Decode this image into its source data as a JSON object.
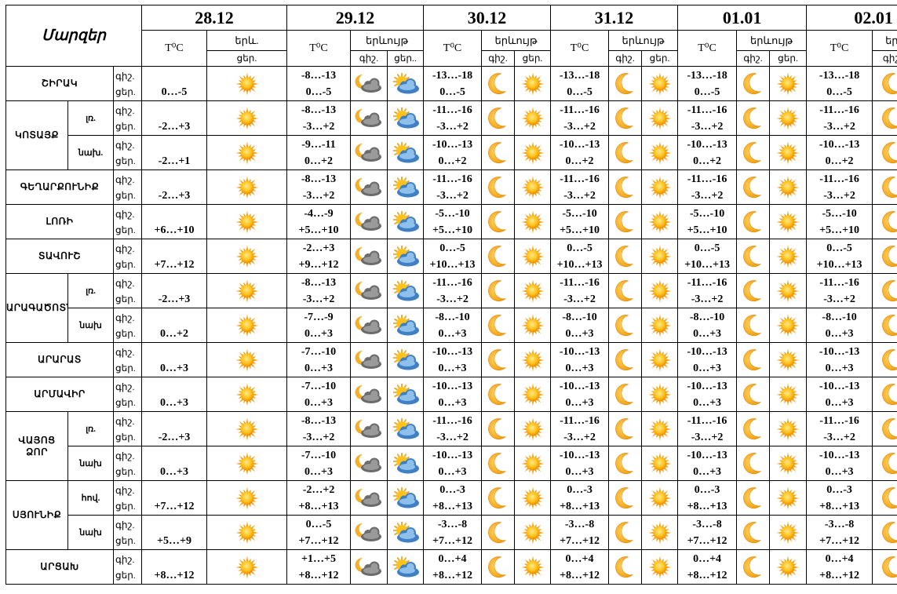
{
  "header": {
    "title": "Մարզեր",
    "dates": [
      "28.12",
      "29.12",
      "30.12",
      "31.12",
      "01.01",
      "02.01"
    ],
    "temp_label": "T⁰C",
    "phen_short": "երև.",
    "phen": "երևույթ",
    "phen_cut": "երևույթ",
    "day": "ցեր.",
    "day_cut": "ցեր..",
    "night": "գիշ."
  },
  "period_labels": {
    "night": "գիշ.",
    "day": "ցեր."
  },
  "icons": {
    "first_day": "sun-icon",
    "day_29": "sun-cloud-icon",
    "night_29": "moon-cloud-icon",
    "night_later": "moon-icon",
    "day_later": "sun-icon"
  },
  "colors": {
    "sun": "#f29a0c",
    "moon": "#f2a21a",
    "cloud": "#4b88c7"
  },
  "regions": [
    {
      "name": "ՇԻՐԱԿ",
      "rows": [
        {
          "area": "",
          "d28": "0…-5",
          "d29n": "-8…-13",
          "d29d": "0…-5",
          "d30n": "-13…-18",
          "d30d": "0…-5",
          "d31n": "-13…-18",
          "d31d": "0…-5",
          "d01n": "-13…-18",
          "d01d": "0…-5",
          "d02n": "-13…-18",
          "d02d": "0…-5"
        }
      ]
    },
    {
      "name": "ԿՈՏԱՅՔ",
      "rows": [
        {
          "area": "լռ.",
          "d28": "-2…+3",
          "d29n": "-8…-13",
          "d29d": "-3…+2",
          "d30n": "-11…-16",
          "d30d": "-3…+2",
          "d31n": "-11…-16",
          "d31d": "-3…+2",
          "d01n": "-11…-16",
          "d01d": "-3…+2",
          "d02n": "-11…-16",
          "d02d": "-3…+2"
        },
        {
          "area": "նախ.",
          "d28": "-2…+1",
          "d29n": "-9…-11",
          "d29d": "0…+2",
          "d30n": "-10…-13",
          "d30d": "0…+2",
          "d31n": "-10…-13",
          "d31d": "0…+2",
          "d01n": "-10…-13",
          "d01d": "0…+2",
          "d02n": "-10…-13",
          "d02d": "0…+2"
        }
      ]
    },
    {
      "name": "ԳԵՂԱՐՔՈՒՆԻՔ",
      "rows": [
        {
          "area": "",
          "d28": "-2…+3",
          "d29n": "-8…-13",
          "d29d": "-3…+2",
          "d30n": "-11…-16",
          "d30d": "-3…+2",
          "d31n": "-11…-16",
          "d31d": "-3…+2",
          "d01n": "-11…-16",
          "d01d": "-3…+2",
          "d02n": "-11…-16",
          "d02d": "-3…+2"
        }
      ]
    },
    {
      "name": "ԼՈՌԻ",
      "rows": [
        {
          "area": "",
          "d28": "+6…+10",
          "d29n": "-4…-9",
          "d29d": "+5…+10",
          "d30n": "-5…-10",
          "d30d": "+5…+10",
          "d31n": "-5…-10",
          "d31d": "+5…+10",
          "d01n": "-5…-10",
          "d01d": "+5…+10",
          "d02n": "-5…-10",
          "d02d": "+5…+10"
        }
      ]
    },
    {
      "name": "ՏԱՎՈՒՇ",
      "rows": [
        {
          "area": "",
          "d28": "+7…+12",
          "d29n": "-2…+3",
          "d29d": "+9…+12",
          "d30n": "0…-5",
          "d30d": "+10…+13",
          "d31n": "0…-5",
          "d31d": "+10…+13",
          "d01n": "0…-5",
          "d01d": "+10…+13",
          "d02n": "0…-5",
          "d02d": "+10…+13"
        }
      ]
    },
    {
      "name": "ԱՐԱԳԱԾՈՏՆ",
      "rows": [
        {
          "area": "լռ.",
          "d28": "-2…+3",
          "d29n": "-8…-13",
          "d29d": "-3…+2",
          "d30n": "-11…-16",
          "d30d": "-3…+2",
          "d31n": "-11…-16",
          "d31d": "-3…+2",
          "d01n": "-11…-16",
          "d01d": "-3…+2",
          "d02n": "-11…-16",
          "d02d": "-3…+2"
        },
        {
          "area": "նախ",
          "d28": "0…+2",
          "d29n": "-7…-9",
          "d29d": "0…+3",
          "d30n": "-8…-10",
          "d30d": "0…+3",
          "d31n": "-8…-10",
          "d31d": "0…+3",
          "d01n": "-8…-10",
          "d01d": "0…+3",
          "d02n": "-8…-10",
          "d02d": "0…+3"
        }
      ]
    },
    {
      "name": "ԱՐԱՐԱՏ",
      "rows": [
        {
          "area": "",
          "d28": "0…+3",
          "d29n": "-7…-10",
          "d29d": "0…+3",
          "d30n": "-10…-13",
          "d30d": "0…+3",
          "d31n": "-10…-13",
          "d31d": "0…+3",
          "d01n": "-10…-13",
          "d01d": "0…+3",
          "d02n": "-10…-13",
          "d02d": "0…+3"
        }
      ]
    },
    {
      "name": "ԱՐՄԱՎԻՐ",
      "rows": [
        {
          "area": "",
          "d28": "0…+3",
          "d29n": "-7…-10",
          "d29d": "0…+3",
          "d30n": "-10…-13",
          "d30d": "0…+3",
          "d31n": "-10…-13",
          "d31d": "0…+3",
          "d01n": "-10…-13",
          "d01d": "0…+3",
          "d02n": "-10…-13",
          "d02d": "0…+3"
        }
      ]
    },
    {
      "name": "ՎԱՅՈՑ ՁՈՐ",
      "rows": [
        {
          "area": "լռ.",
          "d28": "-2…+3",
          "d29n": "-8…-13",
          "d29d": "-3…+2",
          "d30n": "-11…-16",
          "d30d": "-3…+2",
          "d31n": "-11…-16",
          "d31d": "-3…+2",
          "d01n": "-11…-16",
          "d01d": "-3…+2",
          "d02n": "-11…-16",
          "d02d": "-3…+2"
        },
        {
          "area": "նախ",
          "d28": "0…+3",
          "d29n": "-7…-10",
          "d29d": "0…+3",
          "d30n": "-10…-13",
          "d30d": "0…+3",
          "d31n": "-10…-13",
          "d31d": "0…+3",
          "d01n": "-10…-13",
          "d01d": "0…+3",
          "d02n": "-10…-13",
          "d02d": "0…+3"
        }
      ]
    },
    {
      "name": "ՍՅՈՒՆԻՔ",
      "rows": [
        {
          "area": "հով.",
          "d28": "+7…+12",
          "d29n": "-2…+2",
          "d29d": "+8…+13",
          "d30n": "0…-3",
          "d30d": "+8…+13",
          "d31n": "0…-3",
          "d31d": "+8…+13",
          "d01n": "0…-3",
          "d01d": "+8…+13",
          "d02n": "0…-3",
          "d02d": "+8…+13"
        },
        {
          "area": "նախ",
          "d28": "+5…+9",
          "d29n": "0…-5",
          "d29d": "+7…+12",
          "d30n": "-3…-8",
          "d30d": "+7…+12",
          "d31n": "-3…-8",
          "d31d": "+7…+12",
          "d01n": "-3…-8",
          "d01d": "+7…+12",
          "d02n": "-3…-8",
          "d02d": "+7…+12"
        }
      ]
    },
    {
      "name": "ԱՐՑԱԽ",
      "rows": [
        {
          "area": "",
          "d28": "+8…+12",
          "d29n": "+1…+5",
          "d29d": "+8…+12",
          "d30n": "0…+4",
          "d30d": "+8…+12",
          "d31n": "0…+4",
          "d31d": "+8…+12",
          "d01n": "0…+4",
          "d01d": "+8…+12",
          "d02n": "0…+4",
          "d02d": "+8…+12"
        }
      ]
    }
  ]
}
